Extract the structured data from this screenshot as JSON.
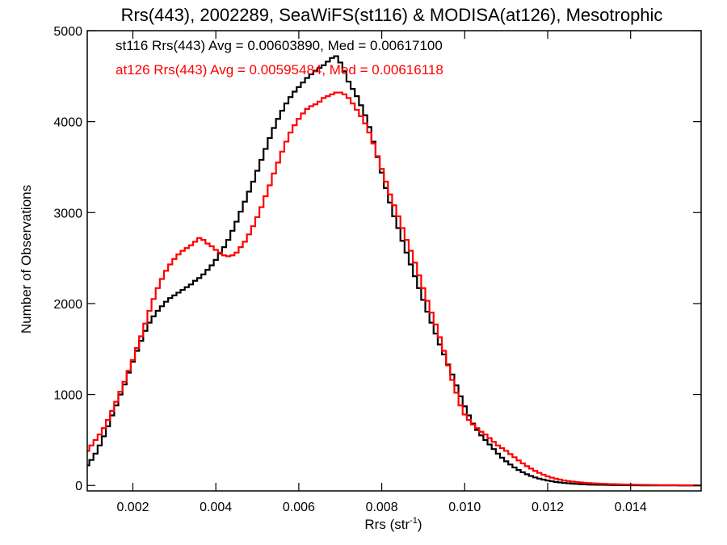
{
  "chart_data": {
    "type": "line",
    "title": "Rrs(443), 2002289, SeaWiFS(st116) & MODISA(at126), Mesotrophic",
    "xlabel_main": "Rrs (str",
    "xlabel_sup": "-1",
    "xlabel_close": ")",
    "ylabel": "Number of Observations",
    "xlim": [
      0.0009,
      0.0157
    ],
    "ylim": [
      -60,
      5000
    ],
    "xticks": [
      0.002,
      0.004,
      0.006,
      0.008,
      0.01,
      0.012,
      0.014
    ],
    "xtick_labels": [
      "0.002",
      "0.004",
      "0.006",
      "0.008",
      "0.010",
      "0.012",
      "0.014"
    ],
    "yticks": [
      0,
      1000,
      2000,
      3000,
      4000,
      5000
    ],
    "ytick_labels": [
      "0",
      "1000",
      "2000",
      "3000",
      "4000",
      "5000"
    ],
    "grid": false,
    "legend_placement": "top-left",
    "series": [
      {
        "name": "st116",
        "label": "st116 Rrs(443) Avg = 0.00603890, Med = 0.00617100",
        "color": "#000000",
        "points": [
          [
            0.0009,
            220
          ],
          [
            0.001,
            280
          ],
          [
            0.0011,
            350
          ],
          [
            0.0012,
            440
          ],
          [
            0.0013,
            540
          ],
          [
            0.0014,
            650
          ],
          [
            0.0015,
            770
          ],
          [
            0.0016,
            880
          ],
          [
            0.0017,
            1000
          ],
          [
            0.0018,
            1110
          ],
          [
            0.0019,
            1240
          ],
          [
            0.002,
            1360
          ],
          [
            0.0021,
            1480
          ],
          [
            0.0022,
            1590
          ],
          [
            0.0023,
            1700
          ],
          [
            0.0024,
            1790
          ],
          [
            0.0025,
            1860
          ],
          [
            0.0026,
            1920
          ],
          [
            0.0027,
            1970
          ],
          [
            0.0028,
            2020
          ],
          [
            0.0029,
            2060
          ],
          [
            0.003,
            2090
          ],
          [
            0.0031,
            2120
          ],
          [
            0.0032,
            2150
          ],
          [
            0.0033,
            2180
          ],
          [
            0.0034,
            2210
          ],
          [
            0.0035,
            2250
          ],
          [
            0.0036,
            2280
          ],
          [
            0.0037,
            2320
          ],
          [
            0.0038,
            2370
          ],
          [
            0.0039,
            2420
          ],
          [
            0.004,
            2480
          ],
          [
            0.0041,
            2550
          ],
          [
            0.0042,
            2620
          ],
          [
            0.0043,
            2700
          ],
          [
            0.0044,
            2800
          ],
          [
            0.0045,
            2900
          ],
          [
            0.0046,
            3010
          ],
          [
            0.0047,
            3120
          ],
          [
            0.0048,
            3230
          ],
          [
            0.0049,
            3340
          ],
          [
            0.005,
            3460
          ],
          [
            0.0051,
            3580
          ],
          [
            0.0052,
            3700
          ],
          [
            0.0053,
            3820
          ],
          [
            0.0054,
            3930
          ],
          [
            0.0055,
            4030
          ],
          [
            0.0056,
            4120
          ],
          [
            0.0057,
            4200
          ],
          [
            0.0058,
            4270
          ],
          [
            0.0059,
            4330
          ],
          [
            0.006,
            4380
          ],
          [
            0.0061,
            4430
          ],
          [
            0.0062,
            4480
          ],
          [
            0.0063,
            4520
          ],
          [
            0.0064,
            4560
          ],
          [
            0.0065,
            4590
          ],
          [
            0.0066,
            4620
          ],
          [
            0.0067,
            4660
          ],
          [
            0.0068,
            4700
          ],
          [
            0.0069,
            4720
          ],
          [
            0.007,
            4650
          ],
          [
            0.0071,
            4550
          ],
          [
            0.0072,
            4440
          ],
          [
            0.0073,
            4360
          ],
          [
            0.0074,
            4280
          ],
          [
            0.0075,
            4180
          ],
          [
            0.0076,
            4070
          ],
          [
            0.0077,
            3940
          ],
          [
            0.0078,
            3780
          ],
          [
            0.0079,
            3610
          ],
          [
            0.008,
            3440
          ],
          [
            0.0081,
            3270
          ],
          [
            0.0082,
            3110
          ],
          [
            0.0083,
            2960
          ],
          [
            0.0084,
            2830
          ],
          [
            0.0085,
            2690
          ],
          [
            0.0086,
            2560
          ],
          [
            0.0087,
            2430
          ],
          [
            0.0088,
            2300
          ],
          [
            0.0089,
            2170
          ],
          [
            0.009,
            2040
          ],
          [
            0.0091,
            1910
          ],
          [
            0.0092,
            1790
          ],
          [
            0.0093,
            1670
          ],
          [
            0.0094,
            1550
          ],
          [
            0.0095,
            1440
          ],
          [
            0.0096,
            1330
          ],
          [
            0.0097,
            1220
          ],
          [
            0.0098,
            1100
          ],
          [
            0.0099,
            980
          ],
          [
            0.01,
            870
          ],
          [
            0.0101,
            770
          ],
          [
            0.0102,
            680
          ],
          [
            0.0103,
            610
          ],
          [
            0.0104,
            550
          ],
          [
            0.0105,
            500
          ],
          [
            0.0106,
            450
          ],
          [
            0.0107,
            400
          ],
          [
            0.0108,
            350
          ],
          [
            0.0109,
            305
          ],
          [
            0.011,
            265
          ],
          [
            0.0111,
            230
          ],
          [
            0.0112,
            198
          ],
          [
            0.0113,
            170
          ],
          [
            0.0114,
            145
          ],
          [
            0.0115,
            123
          ],
          [
            0.0116,
            104
          ],
          [
            0.0117,
            88
          ],
          [
            0.0118,
            75
          ],
          [
            0.0119,
            64
          ],
          [
            0.012,
            54
          ],
          [
            0.0121,
            46
          ],
          [
            0.0122,
            39
          ],
          [
            0.0123,
            33
          ],
          [
            0.0124,
            28
          ],
          [
            0.0125,
            24
          ],
          [
            0.0126,
            20
          ],
          [
            0.0127,
            17
          ],
          [
            0.0128,
            14
          ],
          [
            0.0129,
            12
          ],
          [
            0.013,
            10
          ],
          [
            0.0131,
            9
          ],
          [
            0.0132,
            8
          ],
          [
            0.0133,
            7
          ],
          [
            0.0134,
            6
          ],
          [
            0.0135,
            5
          ],
          [
            0.0136,
            4
          ],
          [
            0.0137,
            4
          ],
          [
            0.0138,
            3
          ],
          [
            0.0139,
            3
          ],
          [
            0.014,
            2
          ],
          [
            0.0141,
            2
          ],
          [
            0.0142,
            2
          ],
          [
            0.0143,
            1
          ],
          [
            0.0144,
            1
          ],
          [
            0.0145,
            1
          ],
          [
            0.0146,
            1
          ],
          [
            0.0147,
            1
          ],
          [
            0.0148,
            1
          ],
          [
            0.0149,
            1
          ],
          [
            0.015,
            1
          ],
          [
            0.0151,
            1
          ],
          [
            0.0152,
            0
          ],
          [
            0.0153,
            0
          ],
          [
            0.0154,
            0
          ],
          [
            0.0155,
            0
          ],
          [
            0.0156,
            0
          ],
          [
            0.0157,
            0
          ]
        ]
      },
      {
        "name": "at126",
        "label": "at126 Rrs(443) Avg = 0.00595484, Med = 0.00616118",
        "color": "#ff0000",
        "points": [
          [
            0.0009,
            380
          ],
          [
            0.001,
            440
          ],
          [
            0.0011,
            500
          ],
          [
            0.0012,
            560
          ],
          [
            0.0013,
            630
          ],
          [
            0.0014,
            720
          ],
          [
            0.0015,
            820
          ],
          [
            0.0016,
            920
          ],
          [
            0.0017,
            1030
          ],
          [
            0.0018,
            1140
          ],
          [
            0.0019,
            1260
          ],
          [
            0.002,
            1380
          ],
          [
            0.0021,
            1510
          ],
          [
            0.0022,
            1640
          ],
          [
            0.0023,
            1780
          ],
          [
            0.0024,
            1920
          ],
          [
            0.0025,
            2050
          ],
          [
            0.0026,
            2170
          ],
          [
            0.0027,
            2270
          ],
          [
            0.0028,
            2360
          ],
          [
            0.0029,
            2430
          ],
          [
            0.003,
            2490
          ],
          [
            0.0031,
            2540
          ],
          [
            0.0032,
            2580
          ],
          [
            0.0033,
            2610
          ],
          [
            0.0034,
            2640
          ],
          [
            0.0035,
            2680
          ],
          [
            0.0036,
            2720
          ],
          [
            0.0037,
            2700
          ],
          [
            0.0038,
            2660
          ],
          [
            0.0039,
            2630
          ],
          [
            0.004,
            2590
          ],
          [
            0.0041,
            2560
          ],
          [
            0.0042,
            2530
          ],
          [
            0.0043,
            2520
          ],
          [
            0.0044,
            2530
          ],
          [
            0.0045,
            2560
          ],
          [
            0.0046,
            2620
          ],
          [
            0.0047,
            2680
          ],
          [
            0.0048,
            2760
          ],
          [
            0.0049,
            2850
          ],
          [
            0.005,
            2950
          ],
          [
            0.0051,
            3060
          ],
          [
            0.0052,
            3180
          ],
          [
            0.0053,
            3300
          ],
          [
            0.0054,
            3430
          ],
          [
            0.0055,
            3550
          ],
          [
            0.0056,
            3670
          ],
          [
            0.0057,
            3780
          ],
          [
            0.0058,
            3880
          ],
          [
            0.0059,
            3960
          ],
          [
            0.006,
            4030
          ],
          [
            0.0061,
            4090
          ],
          [
            0.0062,
            4140
          ],
          [
            0.0063,
            4170
          ],
          [
            0.0064,
            4190
          ],
          [
            0.0065,
            4220
          ],
          [
            0.0066,
            4260
          ],
          [
            0.0067,
            4280
          ],
          [
            0.0068,
            4300
          ],
          [
            0.0069,
            4320
          ],
          [
            0.007,
            4320
          ],
          [
            0.0071,
            4300
          ],
          [
            0.0072,
            4260
          ],
          [
            0.0073,
            4200
          ],
          [
            0.0074,
            4130
          ],
          [
            0.0075,
            4060
          ],
          [
            0.0076,
            3980
          ],
          [
            0.0077,
            3880
          ],
          [
            0.0078,
            3760
          ],
          [
            0.0079,
            3620
          ],
          [
            0.008,
            3480
          ],
          [
            0.0081,
            3340
          ],
          [
            0.0082,
            3200
          ],
          [
            0.0083,
            3080
          ],
          [
            0.0084,
            2960
          ],
          [
            0.0085,
            2830
          ],
          [
            0.0086,
            2700
          ],
          [
            0.0087,
            2580
          ],
          [
            0.0088,
            2450
          ],
          [
            0.0089,
            2310
          ],
          [
            0.009,
            2170
          ],
          [
            0.0091,
            2030
          ],
          [
            0.0092,
            1900
          ],
          [
            0.0093,
            1770
          ],
          [
            0.0094,
            1630
          ],
          [
            0.0095,
            1480
          ],
          [
            0.0096,
            1320
          ],
          [
            0.0097,
            1160
          ],
          [
            0.0098,
            1020
          ],
          [
            0.0099,
            880
          ],
          [
            0.01,
            780
          ],
          [
            0.0101,
            720
          ],
          [
            0.0102,
            670
          ],
          [
            0.0103,
            630
          ],
          [
            0.0104,
            590
          ],
          [
            0.0105,
            560
          ],
          [
            0.0106,
            520
          ],
          [
            0.0107,
            480
          ],
          [
            0.0108,
            440
          ],
          [
            0.0109,
            410
          ],
          [
            0.011,
            380
          ],
          [
            0.0111,
            345
          ],
          [
            0.0112,
            310
          ],
          [
            0.0113,
            275
          ],
          [
            0.0114,
            243
          ],
          [
            0.0115,
            212
          ],
          [
            0.0116,
            185
          ],
          [
            0.0117,
            160
          ],
          [
            0.0118,
            138
          ],
          [
            0.0119,
            118
          ],
          [
            0.012,
            100
          ],
          [
            0.0121,
            86
          ],
          [
            0.0122,
            74
          ],
          [
            0.0123,
            64
          ],
          [
            0.0124,
            55
          ],
          [
            0.0125,
            48
          ],
          [
            0.0126,
            42
          ],
          [
            0.0127,
            37
          ],
          [
            0.0128,
            33
          ],
          [
            0.0129,
            29
          ],
          [
            0.013,
            26
          ],
          [
            0.0131,
            23
          ],
          [
            0.0132,
            21
          ],
          [
            0.0133,
            19
          ],
          [
            0.0134,
            17
          ],
          [
            0.0135,
            15
          ],
          [
            0.0136,
            14
          ],
          [
            0.0137,
            12
          ],
          [
            0.0138,
            11
          ],
          [
            0.0139,
            10
          ],
          [
            0.014,
            9
          ],
          [
            0.0141,
            8
          ],
          [
            0.0142,
            7
          ],
          [
            0.0143,
            6
          ],
          [
            0.0144,
            6
          ],
          [
            0.0145,
            5
          ],
          [
            0.0146,
            5
          ],
          [
            0.0147,
            4
          ],
          [
            0.0148,
            4
          ],
          [
            0.0149,
            3
          ],
          [
            0.015,
            3
          ],
          [
            0.0151,
            3
          ],
          [
            0.0152,
            2
          ],
          [
            0.0153,
            2
          ],
          [
            0.0154,
            2
          ],
          [
            0.0155,
            1
          ],
          [
            0.0156,
            1
          ],
          [
            0.0157,
            1
          ]
        ]
      }
    ]
  }
}
